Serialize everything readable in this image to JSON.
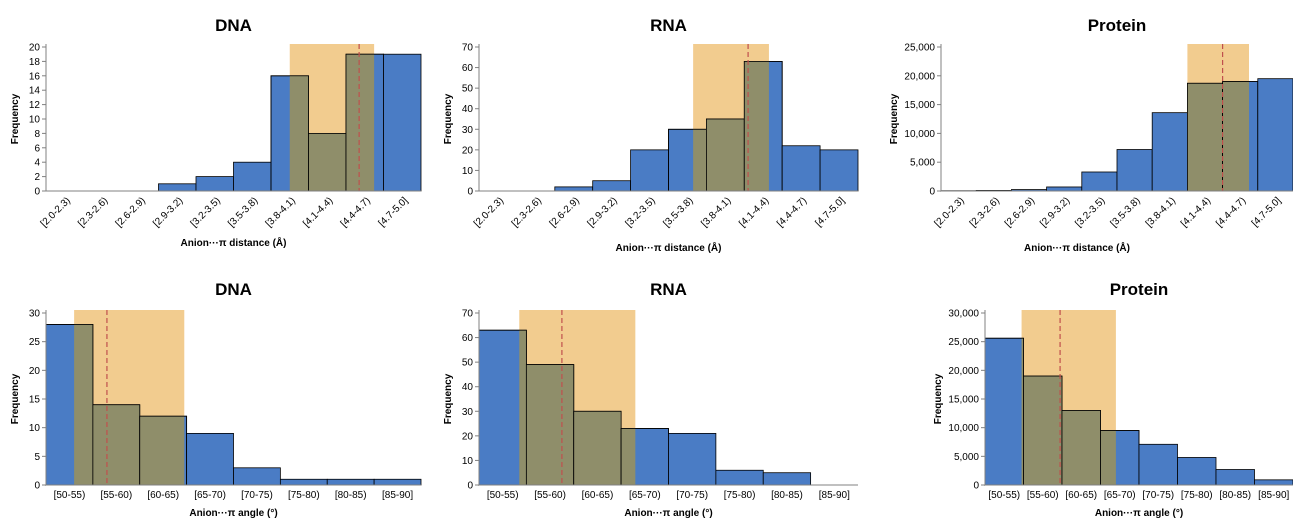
{
  "colors": {
    "bar": "#4A7CC5",
    "bar_stroke": "#000000",
    "highlight": "#F2CC8F",
    "overlap_bar": "#8F8E6A",
    "median_line": "#C0504D",
    "axis": "#808080",
    "text": "#000000"
  },
  "chart_data": [
    {
      "type": "bar",
      "title": "DNA",
      "xlabel": "Anion···π distance (Å)",
      "ylabel": "Frequency",
      "categories": [
        "[2.0-2.3)",
        "[2.3-2.6)",
        "[2.6-2.9)",
        "[2.9-3.2)",
        "[3.2-3.5)",
        "[3.5-3.8)",
        "[3.8-4.1)",
        "[4.1-4.4)",
        "[4.4-4.7)",
        "[4.7-5.0]"
      ],
      "values": [
        0,
        0,
        0,
        1,
        2,
        4,
        16,
        8,
        19,
        19
      ],
      "ylim": [
        0,
        20
      ],
      "yticks": [
        0,
        2,
        4,
        6,
        8,
        10,
        12,
        14,
        16,
        18,
        20
      ],
      "ytick_labels": [
        "0",
        "2",
        "4",
        "6",
        "8",
        "10",
        "12",
        "14",
        "16",
        "18",
        "20"
      ],
      "rotate_labels": true,
      "highlight_range": [
        6.5,
        8.75
      ],
      "median_line": 8.35
    },
    {
      "type": "bar",
      "title": "RNA",
      "xlabel": "Anion···π distance (Å)",
      "ylabel": "Frequency",
      "categories": [
        "[2.0-2.3)",
        "[2.3-2.6)",
        "[2.6-2.9)",
        "[2.9-3.2)",
        "[3.2-3.5)",
        "[3.5-3.8)",
        "[3.8-4.1)",
        "[4.1-4.4)",
        "[4.4-4.7)",
        "[4.7-5.0]"
      ],
      "values": [
        0,
        0,
        2,
        5,
        20,
        30,
        35,
        63,
        22,
        20
      ],
      "ylim": [
        0,
        70
      ],
      "yticks": [
        0,
        10,
        20,
        30,
        40,
        50,
        60,
        70
      ],
      "ytick_labels": [
        "0",
        "10",
        "20",
        "30",
        "40",
        "50",
        "60",
        "70"
      ],
      "rotate_labels": true,
      "highlight_range": [
        5.65,
        7.65
      ],
      "median_line": 7.1
    },
    {
      "type": "bar",
      "title": "Protein",
      "xlabel": "Anion···π distance (Å)",
      "ylabel": "Frequency",
      "categories": [
        "[2.0-2.3)",
        "[2.3-2.6)",
        "[2.6-2.9)",
        "[2.9-3.2)",
        "[3.2-3.5)",
        "[3.5-3.8)",
        "[3.8-4.1)",
        "[4.1-4.4)",
        "[4.4-4.7)",
        "[4.7-5.0]"
      ],
      "values": [
        50,
        100,
        250,
        700,
        3300,
        7200,
        13600,
        18700,
        19000,
        19500
      ],
      "ylim": [
        0,
        25000
      ],
      "yticks": [
        0,
        5000,
        10000,
        15000,
        20000,
        25000
      ],
      "ytick_labels": [
        "0",
        "5,000",
        "10,000",
        "15,000",
        "20,000",
        "25,000"
      ],
      "rotate_labels": true,
      "highlight_range": [
        7.0,
        8.75
      ],
      "median_line": 8.0
    },
    {
      "type": "bar",
      "title": "DNA",
      "xlabel": "Anion···π angle (°)",
      "ylabel": "Frequency",
      "categories": [
        "[50-55)",
        "[55-60)",
        "[60-65)",
        "[65-70)",
        "[70-75)",
        "[75-80)",
        "[80-85)",
        "[85-90]"
      ],
      "values": [
        28,
        14,
        12,
        9,
        3,
        1,
        1,
        1
      ],
      "ylim": [
        0,
        30
      ],
      "yticks": [
        0,
        5,
        10,
        15,
        20,
        25,
        30
      ],
      "ytick_labels": [
        "0",
        "5",
        "10",
        "15",
        "20",
        "25",
        "30"
      ],
      "rotate_labels": false,
      "highlight_range": [
        0.6,
        2.95
      ],
      "median_line": 1.3
    },
    {
      "type": "bar",
      "title": "RNA",
      "xlabel": "Anion···π angle (°)",
      "ylabel": "Frequency",
      "categories": [
        "[50-55)",
        "[55-60)",
        "[60-65)",
        "[65-70)",
        "[70-75)",
        "[75-80)",
        "[80-85)",
        "[85-90]"
      ],
      "values": [
        63,
        49,
        30,
        23,
        21,
        6,
        5,
        0
      ],
      "ylim": [
        0,
        70
      ],
      "yticks": [
        0,
        10,
        20,
        30,
        40,
        50,
        60,
        70
      ],
      "ytick_labels": [
        "0",
        "10",
        "20",
        "30",
        "40",
        "50",
        "60",
        "70"
      ],
      "rotate_labels": false,
      "highlight_range": [
        0.85,
        3.3
      ],
      "median_line": 1.75
    },
    {
      "type": "bar",
      "title": "Protein",
      "xlabel": "Anion···π angle (°)",
      "ylabel": "Frequency",
      "categories": [
        "[50-55)",
        "[55-60)",
        "[60-65)",
        "[65-70)",
        "[70-75)",
        "[75-80)",
        "[80-85)",
        "[85-90]"
      ],
      "values": [
        25600,
        19000,
        13000,
        9500,
        7100,
        4800,
        2700,
        900
      ],
      "ylim": [
        0,
        30000
      ],
      "yticks": [
        0,
        5000,
        10000,
        15000,
        20000,
        25000,
        30000
      ],
      "ytick_labels": [
        "0",
        "5,000",
        "10,000",
        "15,000",
        "20,000",
        "25,000",
        "30,000"
      ],
      "rotate_labels": false,
      "highlight_range": [
        0.95,
        3.4
      ],
      "median_line": 1.95
    }
  ]
}
